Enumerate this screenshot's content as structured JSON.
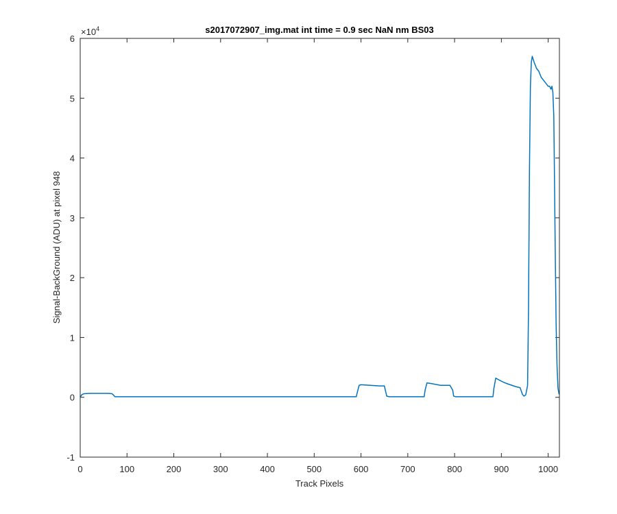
{
  "chart_data": {
    "type": "line",
    "title": "s2017072907_img.mat int time = 0.9 sec  NaN nm BS03",
    "xlabel": "Track Pixels",
    "ylabel": "Signal-BackGround (ADU) at pixel 948",
    "xlim": [
      0,
      1024
    ],
    "ylim": [
      -10000,
      60000
    ],
    "x_ticks": [
      0,
      100,
      200,
      300,
      400,
      500,
      600,
      700,
      800,
      900,
      1000
    ],
    "y_ticks": [
      -1,
      0,
      1,
      2,
      3,
      4,
      5,
      6
    ],
    "y_exponent": {
      "base": "×10",
      "power": "4"
    },
    "grid": false,
    "line_color": "#0072BD",
    "series": [
      {
        "x": [
          0,
          3,
          8,
          20,
          40,
          60,
          68,
          72,
          74,
          80,
          150,
          300,
          450,
          590,
          592,
          596,
          600,
          620,
          640,
          650,
          652,
          655,
          660,
          700,
          735,
          737,
          741,
          750,
          770,
          790,
          796,
          798,
          802,
          840,
          882,
          884,
          888,
          895,
          905,
          915,
          930,
          940,
          945,
          948,
          952,
          956,
          958,
          960,
          962,
          964,
          966,
          968,
          970,
          975,
          980,
          985,
          990,
          995,
          1000,
          1003,
          1006,
          1008,
          1010,
          1012,
          1013,
          1015,
          1017,
          1019,
          1021,
          1023,
          1024
        ],
        "y": [
          0,
          400,
          600,
          650,
          650,
          650,
          600,
          300,
          100,
          100,
          100,
          100,
          100,
          100,
          800,
          2000,
          2100,
          2000,
          1900,
          1900,
          1200,
          200,
          100,
          100,
          100,
          1200,
          2400,
          2300,
          2000,
          2000,
          1200,
          200,
          100,
          100,
          100,
          1500,
          3200,
          2900,
          2500,
          2200,
          1800,
          1600,
          500,
          200,
          400,
          2000,
          15000,
          38000,
          52000,
          56000,
          57000,
          56500,
          56000,
          55000,
          54500,
          53500,
          53000,
          52500,
          52000,
          52000,
          51500,
          52000,
          51000,
          47000,
          40000,
          25000,
          12000,
          5000,
          1500,
          600,
          500
        ]
      }
    ]
  }
}
